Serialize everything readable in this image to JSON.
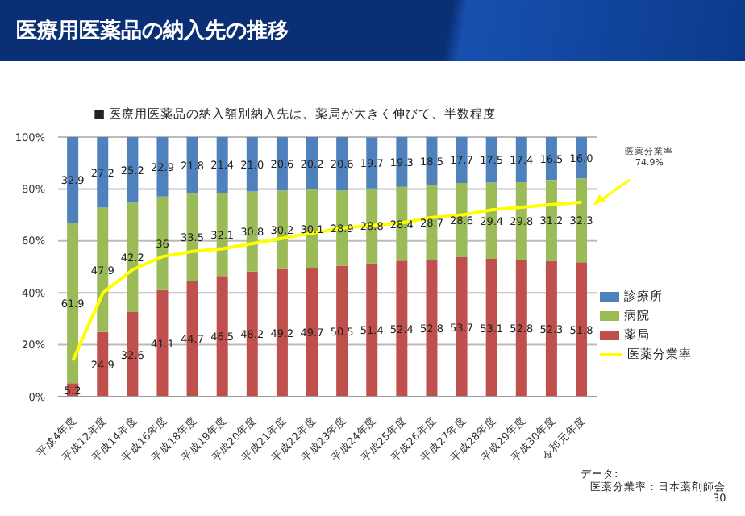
{
  "chart_data": {
    "type": "bar",
    "stacked": true,
    "title": "医療用医薬品の納入先の推移",
    "subtitle": "■ 医療用医薬品の納入額別納入先は、薬局が大きく伸びて、半数程度",
    "categories": [
      "平成4年度",
      "平成12年度",
      "平成14年度",
      "平成16年度",
      "平成18年度",
      "平成19年度",
      "平成20年度",
      "平成21年度",
      "平成22年度",
      "平成23年度",
      "平成24年度",
      "平成25年度",
      "平成26年度",
      "平成27年度",
      "平成28年度",
      "平成29年度",
      "平成30年度",
      "令和元年度"
    ],
    "series": [
      {
        "name": "薬局",
        "color": "#c0504d",
        "values": [
          5.2,
          24.9,
          32.6,
          41.1,
          44.7,
          46.5,
          48.2,
          49.2,
          49.7,
          50.5,
          51.4,
          52.4,
          52.8,
          53.7,
          53.1,
          52.8,
          52.3,
          51.8
        ],
        "value_labels": [
          "5.2",
          "24.9",
          "32.6",
          "41.1",
          "44.7",
          "46.5",
          "48.2",
          "49.2",
          "49.7",
          "50.5",
          "51.4",
          "52.4",
          "52.8",
          "53.7",
          "53.1",
          "52.8",
          "52.3",
          "51.8"
        ]
      },
      {
        "name": "病院",
        "color": "#9bbb59",
        "values": [
          61.9,
          47.9,
          42.2,
          36,
          33.5,
          32.1,
          30.8,
          30.2,
          30.1,
          28.9,
          28.8,
          28.4,
          28.7,
          28.6,
          29.4,
          29.8,
          31.2,
          32.3
        ],
        "value_labels": [
          "61.9",
          "47.9",
          "42.2",
          "36",
          "33.5",
          "32.1",
          "30.8",
          "30.2",
          "30.1",
          "28.9",
          "28.8",
          "28.4",
          "28.7",
          "28.6",
          "29.4",
          "29.8",
          "31.2",
          "32.3"
        ]
      },
      {
        "name": "診療所",
        "color": "#4f81bd",
        "values": [
          32.9,
          27.2,
          25.2,
          22.9,
          21.8,
          21.4,
          21.0,
          20.6,
          20.2,
          20.6,
          19.7,
          19.3,
          18.5,
          17.7,
          17.5,
          17.4,
          16.5,
          16.0
        ],
        "value_labels": [
          "32.9",
          "27.2",
          "25.2",
          "22.9",
          "21.8",
          "21.4",
          "21.0",
          "20.6",
          "20.2",
          "20.6",
          "19.7",
          "19.3",
          "18.5",
          "17.7",
          "17.5",
          "17.4",
          "16.5",
          "16.0"
        ]
      },
      {
        "name": "医薬分業率",
        "type": "line",
        "color": "#ffff00",
        "marker": "none",
        "line_style": "solid",
        "values": [
          14,
          40,
          49,
          54,
          56,
          57,
          59,
          61,
          63,
          65,
          66,
          67,
          69,
          70,
          72,
          73,
          74,
          74.9
        ]
      }
    ],
    "ylim": [
      0,
      100
    ],
    "yticks": [
      {
        "value": 0,
        "label": "0%"
      },
      {
        "value": 20,
        "label": "20%"
      },
      {
        "value": 40,
        "label": "40%"
      },
      {
        "value": 60,
        "label": "60%"
      },
      {
        "value": 80,
        "label": "80%"
      },
      {
        "value": 100,
        "label": "100%"
      }
    ],
    "grid": "y",
    "legend": "right",
    "annotations": [
      {
        "text": "医薬分業率\n74.9%",
        "x": "令和元年度",
        "y": 74.9
      },
      "データ:",
      "医薬分業率：日本薬剤師会",
      "30"
    ]
  }
}
